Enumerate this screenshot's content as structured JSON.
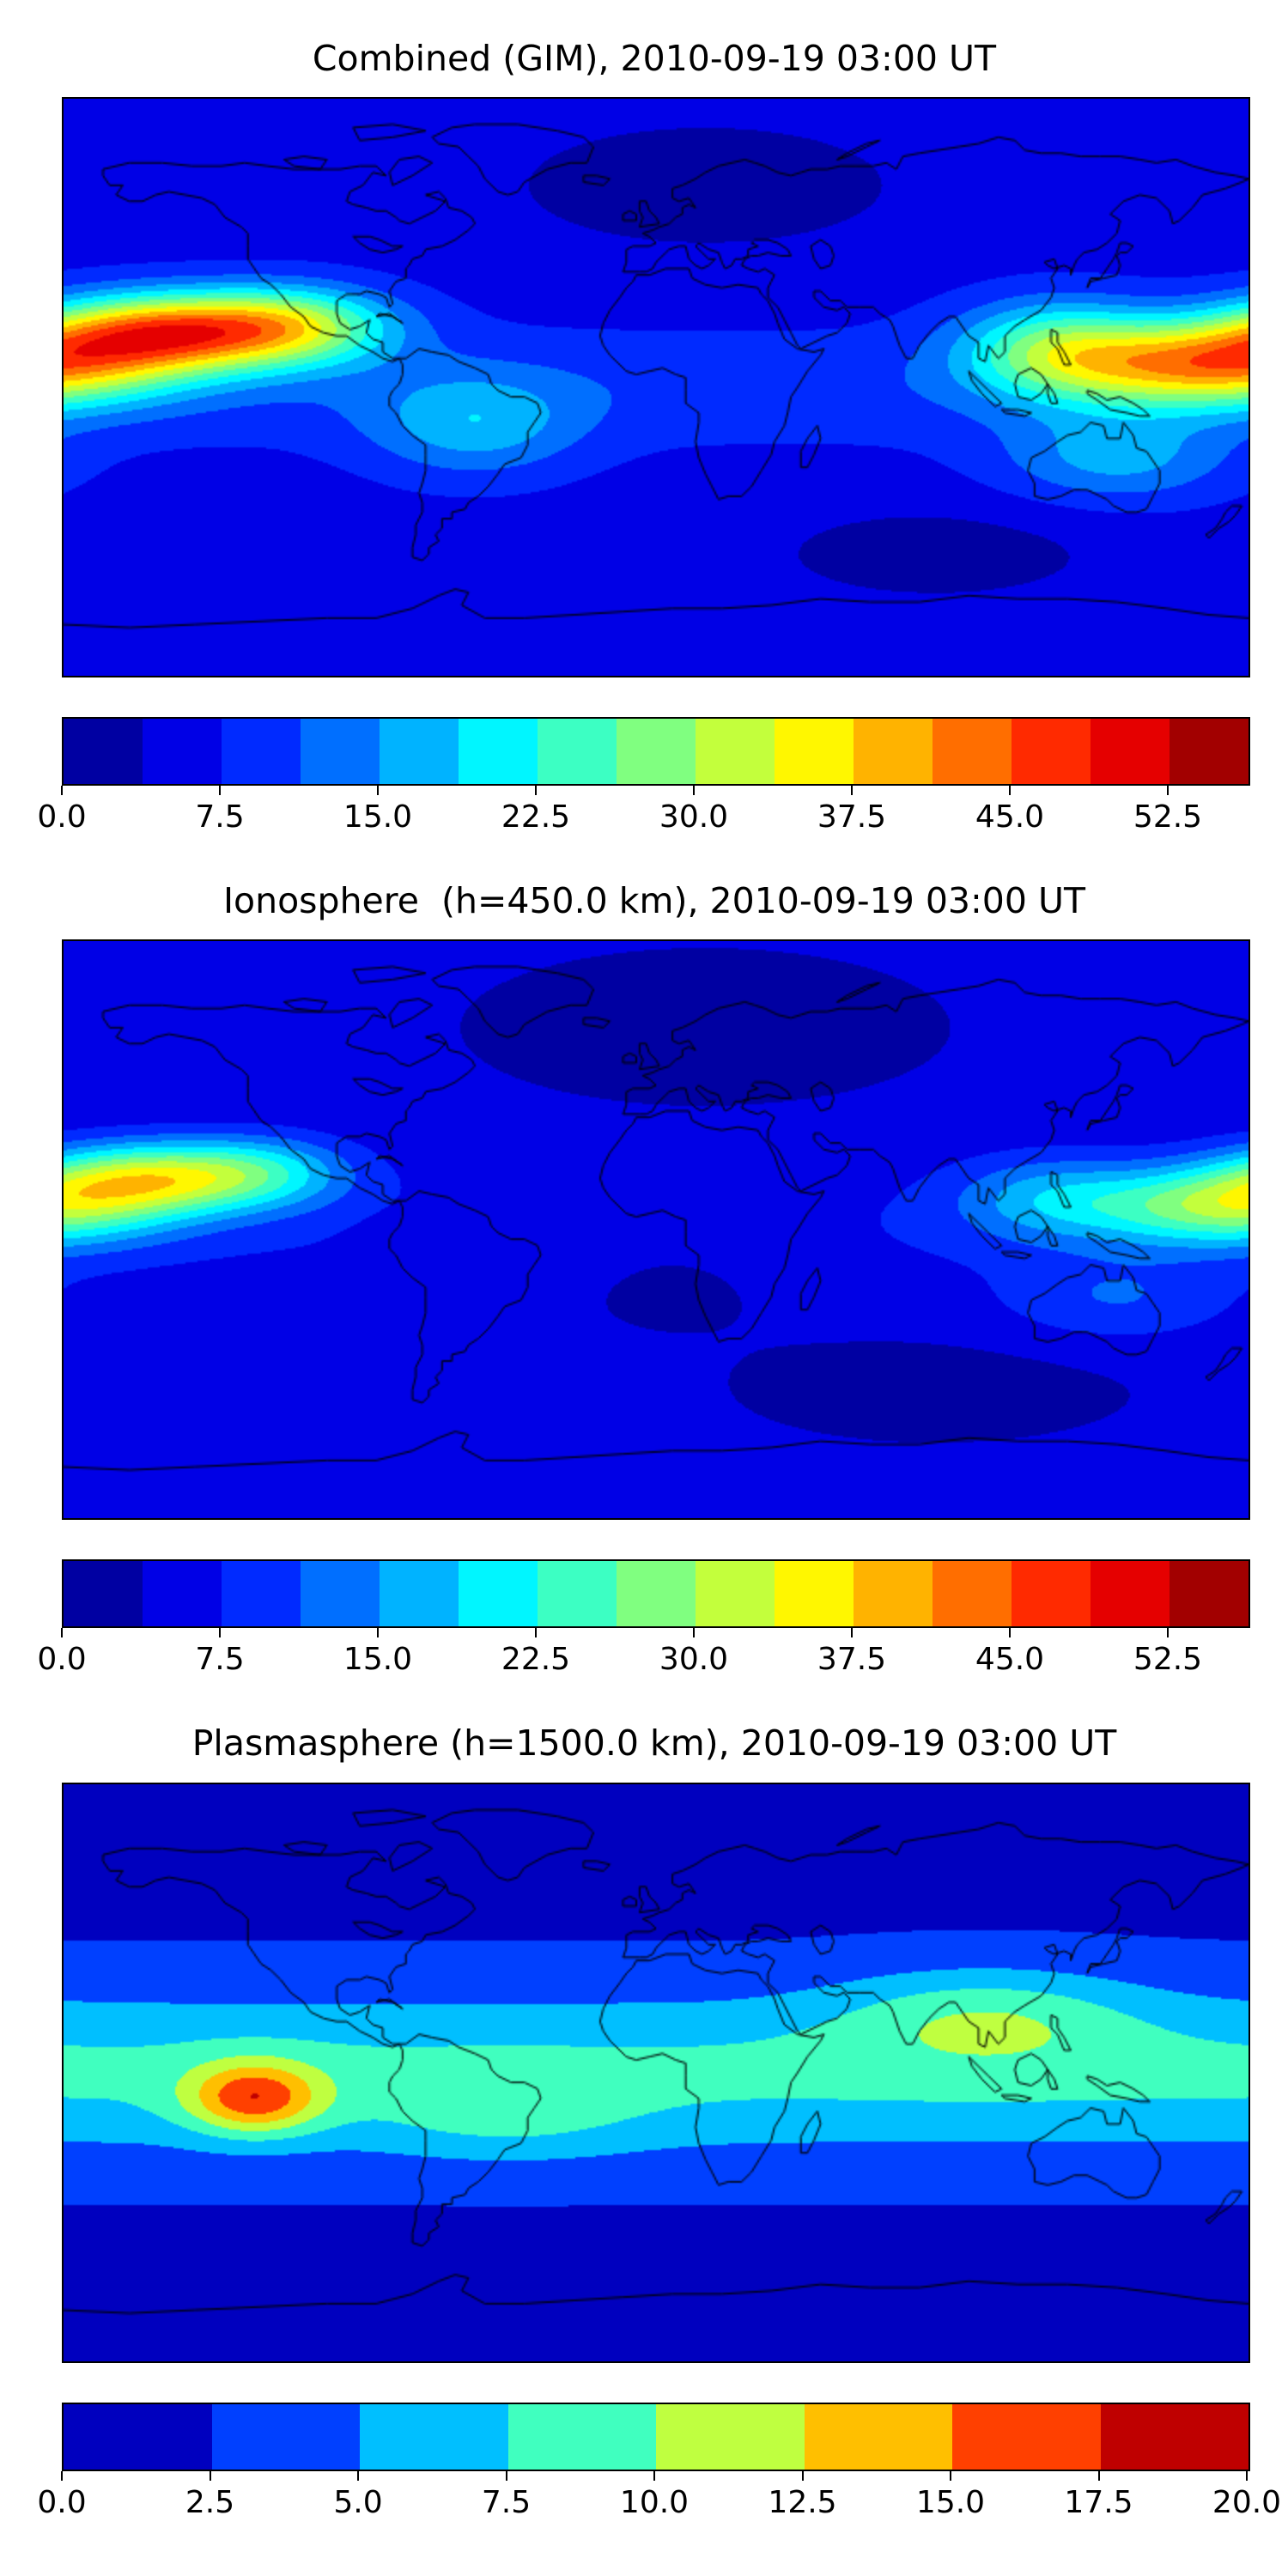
{
  "figure": {
    "background": "#ffffff",
    "coastline_color": "#000000",
    "map_border_color": "#000000"
  },
  "chart_data": [
    {
      "type": "heatmap",
      "title": "Combined (GIM), 2010-09-19 03:00 UT",
      "projection": "equirectangular",
      "lon_range": [
        -180,
        180
      ],
      "lat_range": [
        -90,
        90
      ],
      "colormap": "jet",
      "value_range": [
        0,
        56.25
      ],
      "levels": 15,
      "colorbar": {
        "orientation": "horizontal",
        "tick_values": [
          0,
          7.5,
          15,
          22.5,
          30,
          37.5,
          45,
          52.5
        ],
        "tick_labels": [
          "0.0",
          "7.5",
          "15.0",
          "22.5",
          "30.0",
          "37.5",
          "45.0",
          "52.5"
        ]
      },
      "field": {
        "base": 6,
        "lat_band": {
          "amp": 4,
          "lat": 0,
          "sigma": 18
        },
        "blobs": [
          {
            "lon": -152,
            "lat": 17,
            "slon": 36,
            "slat": 12,
            "amp": 32
          },
          {
            "lon": -112,
            "lat": 19,
            "slon": 32,
            "slat": 12,
            "amp": 24
          },
          {
            "lon": 168,
            "lat": 7,
            "slon": 42,
            "slat": 13,
            "amp": 30
          },
          {
            "lon": 122,
            "lat": 12,
            "slon": 30,
            "slat": 15,
            "amp": 18
          },
          {
            "lon": -55,
            "lat": -12,
            "slon": 32,
            "slat": 16,
            "amp": 10
          },
          {
            "lon": 140,
            "lat": -22,
            "slon": 35,
            "slat": 14,
            "amp": 10
          },
          {
            "lon": 15,
            "lat": 63,
            "slon": 60,
            "slat": 20,
            "amp": -5
          },
          {
            "lon": 85,
            "lat": -52,
            "slon": 55,
            "slat": 16,
            "amp": -4
          }
        ]
      }
    },
    {
      "type": "heatmap",
      "title": "Ionosphere  (h=450.0 km), 2010-09-19 03:00 UT",
      "projection": "equirectangular",
      "lon_range": [
        -180,
        180
      ],
      "lat_range": [
        -90,
        90
      ],
      "colormap": "jet",
      "value_range": [
        0,
        56.25
      ],
      "levels": 15,
      "colorbar": {
        "orientation": "horizontal",
        "tick_values": [
          0,
          7.5,
          15,
          22.5,
          30,
          37.5,
          45,
          52.5
        ],
        "tick_labels": [
          "0.0",
          "7.5",
          "15.0",
          "22.5",
          "30.0",
          "37.5",
          "45.0",
          "52.5"
        ]
      },
      "field": {
        "base": 4.5,
        "lat_band": {
          "amp": 3,
          "lat": 0,
          "sigma": 20
        },
        "blobs": [
          {
            "lon": -155,
            "lat": 16,
            "slon": 34,
            "slat": 11,
            "amp": 24
          },
          {
            "lon": -120,
            "lat": 18,
            "slon": 28,
            "slat": 11,
            "amp": 13
          },
          {
            "lon": 172,
            "lat": 7,
            "slon": 38,
            "slat": 12,
            "amp": 21
          },
          {
            "lon": 120,
            "lat": 10,
            "slon": 30,
            "slat": 13,
            "amp": 10
          },
          {
            "lon": 140,
            "lat": -22,
            "slon": 35,
            "slat": 13,
            "amp": 6
          },
          {
            "lon": -70,
            "lat": -5,
            "slon": 20,
            "slat": 10,
            "amp": -3
          },
          {
            "lon": 15,
            "lat": 63,
            "slon": 60,
            "slat": 20,
            "amp": -3.5
          },
          {
            "lon": 5,
            "lat": -8,
            "slon": 45,
            "slat": 22,
            "amp": -3
          },
          {
            "lon": 85,
            "lat": -50,
            "slon": 55,
            "slat": 15,
            "amp": -2.5
          }
        ]
      }
    },
    {
      "type": "heatmap",
      "title": "Plasmasphere (h=1500.0 km), 2010-09-19 03:00 UT",
      "projection": "equirectangular",
      "lon_range": [
        -180,
        180
      ],
      "lat_range": [
        -90,
        90
      ],
      "colormap": "jet",
      "value_range": [
        0,
        20
      ],
      "levels": 8,
      "colorbar": {
        "orientation": "horizontal",
        "tick_values": [
          0,
          2.5,
          5,
          7.5,
          10,
          12.5,
          15,
          17.5,
          20
        ],
        "tick_labels": [
          "0.0",
          "2.5",
          "5.0",
          "7.5",
          "10.0",
          "12.5",
          "15.0",
          "17.5",
          "20.0"
        ]
      },
      "field": {
        "base": 2,
        "lat_band": {
          "amp": 6,
          "lat": 0,
          "sigma": 26
        },
        "blobs": [
          {
            "lon": -122,
            "lat": -8,
            "slon": 20,
            "slat": 11,
            "amp": 10
          },
          {
            "lon": 100,
            "lat": 18,
            "slon": 45,
            "slat": 15,
            "amp": 4.5
          },
          {
            "lon": -45,
            "lat": -15,
            "slon": 40,
            "slat": 13,
            "amp": 2.5
          }
        ]
      }
    }
  ]
}
